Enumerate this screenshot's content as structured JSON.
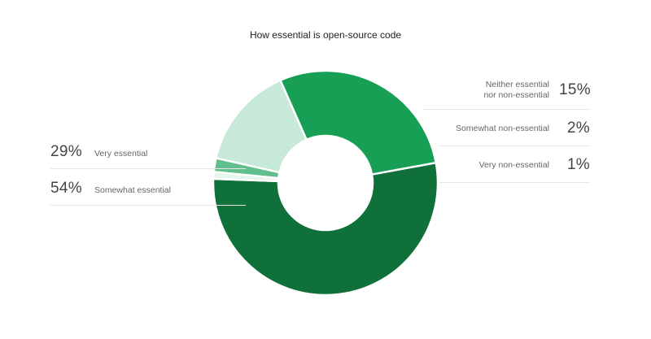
{
  "chart_data": {
    "type": "pie",
    "variant": "donut",
    "title": "How essential is open-source code",
    "slices": [
      {
        "label": "Somewhat essential",
        "value": 54,
        "display": "54%",
        "color": "#0f703a"
      },
      {
        "label": "Very essential",
        "value": 29,
        "display": "29%",
        "color": "#17a055"
      },
      {
        "label": "Neither essential nor non-essential",
        "lines": [
          "Neither essential",
          "nor non-essential"
        ],
        "value": 15,
        "display": "15%",
        "color": "#c6ead7"
      },
      {
        "label": "Somewhat non-essential",
        "value": 2,
        "display": "2%",
        "color": "#61bf8b"
      },
      {
        "label": "Very non-essential",
        "value": 1,
        "display": "1%",
        "color": "#e6f6ed"
      }
    ]
  }
}
